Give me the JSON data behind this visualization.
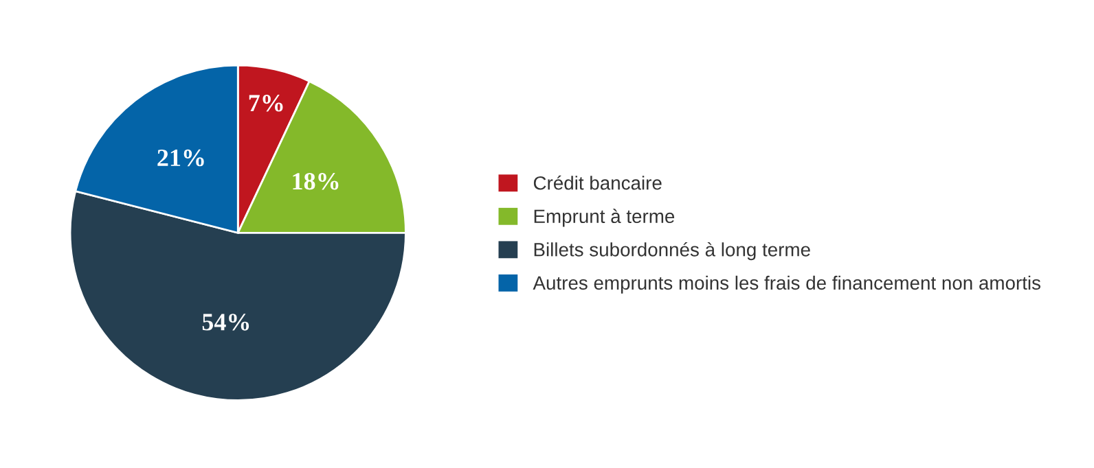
{
  "chart_data": {
    "type": "pie",
    "categories": [
      "Crédit bancaire",
      "Emprunt à terme",
      "Billets subordonnés à long terme",
      "Autres emprunts moins les frais de financement non amortis"
    ],
    "values": [
      7,
      18,
      54,
      21
    ],
    "colors": [
      "#c0161f",
      "#84b92a",
      "#253f51",
      "#0464a8"
    ],
    "value_labels": [
      "7%",
      "18%",
      "54%",
      "21%"
    ],
    "legend": "right"
  }
}
